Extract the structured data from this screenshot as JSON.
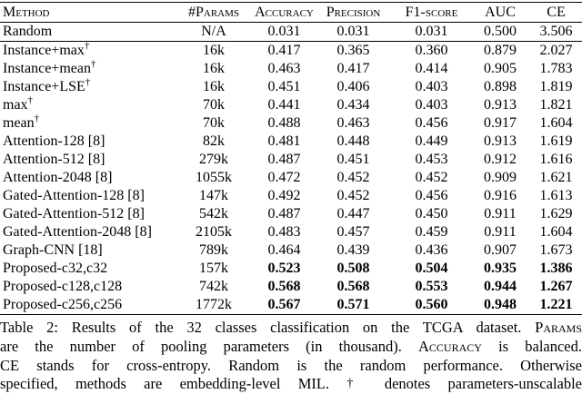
{
  "table": {
    "columns": [
      {
        "id": "method",
        "label": "Method"
      },
      {
        "id": "params",
        "label": "#Params"
      },
      {
        "id": "accuracy",
        "label": "Accuracy"
      },
      {
        "id": "precision",
        "label": "Precision"
      },
      {
        "id": "f1-score",
        "label": "F1-score"
      },
      {
        "id": "auc",
        "label": "AUC"
      },
      {
        "id": "ce",
        "label": "CE"
      }
    ],
    "rows": [
      {
        "method": "Random",
        "marker": "",
        "params": "N/A",
        "metrics": [
          "0.031",
          "0.031",
          "0.031",
          "0.500",
          "3.506"
        ],
        "bold": false,
        "rule_below": true
      },
      {
        "method": "Instance+max",
        "marker": "†",
        "params": "16k",
        "metrics": [
          "0.417",
          "0.365",
          "0.360",
          "0.879",
          "2.027"
        ],
        "bold": false,
        "rule_below": false
      },
      {
        "method": "Instance+mean",
        "marker": "†",
        "params": "16k",
        "metrics": [
          "0.463",
          "0.417",
          "0.414",
          "0.905",
          "1.783"
        ],
        "bold": false,
        "rule_below": false
      },
      {
        "method": "Instance+LSE",
        "marker": "†",
        "params": "16k",
        "metrics": [
          "0.451",
          "0.406",
          "0.403",
          "0.898",
          "1.819"
        ],
        "bold": false,
        "rule_below": false
      },
      {
        "method": "max",
        "marker": "†",
        "params": "70k",
        "metrics": [
          "0.441",
          "0.434",
          "0.403",
          "0.913",
          "1.821"
        ],
        "bold": false,
        "rule_below": false
      },
      {
        "method": "mean",
        "marker": "†",
        "params": "70k",
        "metrics": [
          "0.488",
          "0.463",
          "0.456",
          "0.917",
          "1.604"
        ],
        "bold": false,
        "rule_below": false
      },
      {
        "method": "Attention-128 [8]",
        "marker": "",
        "params": "82k",
        "metrics": [
          "0.481",
          "0.448",
          "0.449",
          "0.913",
          "1.619"
        ],
        "bold": false,
        "rule_below": false
      },
      {
        "method": "Attention-512 [8]",
        "marker": "",
        "params": "279k",
        "metrics": [
          "0.487",
          "0.451",
          "0.453",
          "0.912",
          "1.616"
        ],
        "bold": false,
        "rule_below": false
      },
      {
        "method": "Attention-2048 [8]",
        "marker": "",
        "params": "1055k",
        "metrics": [
          "0.472",
          "0.452",
          "0.452",
          "0.909",
          "1.621"
        ],
        "bold": false,
        "rule_below": false
      },
      {
        "method": "Gated-Attention-128 [8]",
        "marker": "",
        "params": "147k",
        "metrics": [
          "0.492",
          "0.452",
          "0.456",
          "0.916",
          "1.613"
        ],
        "bold": false,
        "rule_below": false
      },
      {
        "method": "Gated-Attention-512 [8]",
        "marker": "",
        "params": "542k",
        "metrics": [
          "0.487",
          "0.447",
          "0.450",
          "0.911",
          "1.629"
        ],
        "bold": false,
        "rule_below": false
      },
      {
        "method": "Gated-Attention-2048 [8]",
        "marker": "",
        "params": "2105k",
        "metrics": [
          "0.483",
          "0.457",
          "0.459",
          "0.911",
          "1.604"
        ],
        "bold": false,
        "rule_below": false
      },
      {
        "method": "Graph-CNN [18]",
        "marker": "",
        "params": "789k",
        "metrics": [
          "0.464",
          "0.439",
          "0.436",
          "0.907",
          "1.673"
        ],
        "bold": false,
        "rule_below": false
      },
      {
        "method": "Proposed-c32,c32",
        "marker": "",
        "params": "157k",
        "metrics": [
          "0.523",
          "0.508",
          "0.504",
          "0.935",
          "1.386"
        ],
        "bold": true,
        "rule_below": false
      },
      {
        "method": "Proposed-c128,c128",
        "marker": "",
        "params": "742k",
        "metrics": [
          "0.568",
          "0.568",
          "0.553",
          "0.944",
          "1.267"
        ],
        "bold": true,
        "rule_below": false
      },
      {
        "method": "Proposed-c256,c256",
        "marker": "",
        "params": "1772k",
        "metrics": [
          "0.567",
          "0.571",
          "0.560",
          "0.948",
          "1.221"
        ],
        "bold": true,
        "rule_below": false
      }
    ]
  },
  "caption": {
    "lines": [
      {
        "segments": [
          {
            "text": "Table 2: Results of the 32 classes classification on the TCGA dataset. ",
            "style": "normal"
          },
          {
            "text": "Params",
            "style": "smallcaps"
          }
        ]
      },
      {
        "segments": [
          {
            "text": "are the number of pooling parameters (in thousand). ",
            "style": "normal"
          },
          {
            "text": "Accuracy",
            "style": "smallcaps"
          },
          {
            "text": " is balanced.",
            "style": "normal"
          }
        ]
      },
      {
        "segments": [
          {
            "text": "CE stands for cross-entropy. Random is the random performance. Otherwise",
            "style": "normal"
          }
        ]
      },
      {
        "segments": [
          {
            "text": "specified, methods are embedding-level MIL. ",
            "style": "normal"
          },
          {
            "text": "†",
            "style": "dagger"
          },
          {
            "text": " denotes parameters-unscalable",
            "style": "normal"
          }
        ]
      }
    ]
  },
  "colors": {
    "text": "#000000",
    "background": "#ffffff",
    "rule": "#000000"
  }
}
